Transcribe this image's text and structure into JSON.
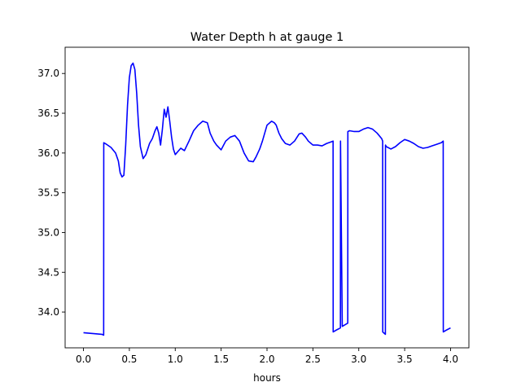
{
  "chart_data": {
    "type": "line",
    "title": "Water Depth h at gauge 1",
    "xlabel": "hours",
    "ylabel": "",
    "xlim": [
      -0.2,
      4.2
    ],
    "ylim": [
      33.55,
      37.33
    ],
    "xticks": [
      0.0,
      0.5,
      1.0,
      1.5,
      2.0,
      2.5,
      3.0,
      3.5,
      4.0
    ],
    "xtick_labels": [
      "0.0",
      "0.5",
      "1.0",
      "1.5",
      "2.0",
      "2.5",
      "3.0",
      "3.5",
      "4.0"
    ],
    "yticks": [
      34.0,
      34.5,
      35.0,
      35.5,
      36.0,
      36.5,
      37.0
    ],
    "ytick_labels": [
      "34.0",
      "34.5",
      "35.0",
      "35.5",
      "36.0",
      "36.5",
      "37.0"
    ],
    "grid": false,
    "series": [
      {
        "color": "#0000ff",
        "x": [
          0.0,
          0.1,
          0.2,
          0.22,
          0.221,
          0.25,
          0.3,
          0.35,
          0.38,
          0.4,
          0.42,
          0.44,
          0.46,
          0.48,
          0.5,
          0.52,
          0.54,
          0.56,
          0.58,
          0.6,
          0.62,
          0.65,
          0.68,
          0.7,
          0.72,
          0.75,
          0.78,
          0.8,
          0.82,
          0.84,
          0.86,
          0.88,
          0.9,
          0.92,
          0.94,
          0.96,
          0.98,
          1.0,
          1.03,
          1.06,
          1.1,
          1.15,
          1.2,
          1.25,
          1.3,
          1.35,
          1.38,
          1.42,
          1.45,
          1.5,
          1.55,
          1.6,
          1.65,
          1.7,
          1.75,
          1.8,
          1.85,
          1.88,
          1.92,
          1.95,
          2.0,
          2.05,
          2.08,
          2.1,
          2.13,
          2.16,
          2.2,
          2.25,
          2.3,
          2.35,
          2.38,
          2.42,
          2.45,
          2.5,
          2.55,
          2.6,
          2.65,
          2.7,
          2.72,
          2.721,
          2.75,
          2.8,
          2.801,
          2.82,
          2.88,
          2.881,
          2.9,
          2.95,
          3.0,
          3.05,
          3.1,
          3.15,
          3.2,
          3.25,
          3.26,
          3.261,
          3.29,
          3.291,
          3.3,
          3.35,
          3.4,
          3.45,
          3.5,
          3.55,
          3.6,
          3.65,
          3.7,
          3.75,
          3.8,
          3.85,
          3.9,
          3.92,
          3.921,
          3.95,
          4.0
        ],
        "y": [
          33.74,
          33.73,
          33.72,
          33.71,
          36.13,
          36.11,
          36.07,
          36.0,
          35.9,
          35.75,
          35.7,
          35.72,
          36.1,
          36.6,
          36.95,
          37.1,
          37.13,
          37.05,
          36.75,
          36.35,
          36.08,
          35.93,
          35.98,
          36.05,
          36.12,
          36.18,
          36.28,
          36.33,
          36.25,
          36.1,
          36.3,
          36.55,
          36.45,
          36.58,
          36.4,
          36.2,
          36.05,
          35.98,
          36.02,
          36.06,
          36.03,
          36.15,
          36.28,
          36.35,
          36.4,
          36.38,
          36.25,
          36.15,
          36.1,
          36.04,
          36.15,
          36.2,
          36.22,
          36.15,
          36.0,
          35.9,
          35.89,
          35.95,
          36.05,
          36.15,
          36.35,
          36.4,
          36.38,
          36.35,
          36.25,
          36.18,
          36.12,
          36.1,
          36.15,
          36.24,
          36.25,
          36.2,
          36.15,
          36.1,
          36.1,
          36.09,
          36.12,
          36.14,
          36.15,
          33.75,
          33.77,
          33.8,
          36.15,
          33.82,
          33.86,
          36.27,
          36.28,
          36.27,
          36.27,
          36.3,
          36.32,
          36.3,
          36.25,
          36.18,
          36.15,
          33.75,
          33.72,
          36.1,
          36.08,
          36.05,
          36.08,
          36.13,
          36.17,
          36.15,
          36.12,
          36.08,
          36.06,
          36.07,
          36.09,
          36.11,
          36.13,
          36.15,
          33.75,
          33.77,
          33.8
        ]
      }
    ]
  }
}
